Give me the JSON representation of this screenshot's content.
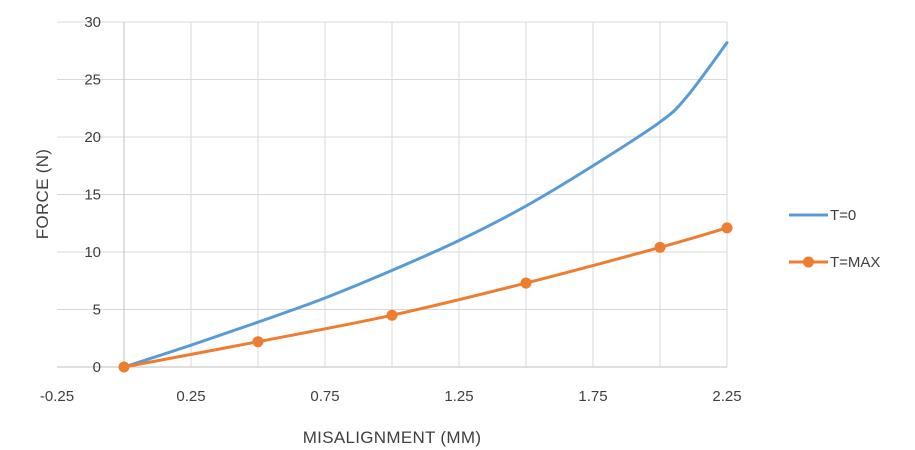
{
  "chart_data": {
    "type": "line",
    "title": "",
    "xlabel": "MISALIGNMENT  (MM)",
    "ylabel": "FORCE (N)",
    "xlim": [
      -0.25,
      2.25
    ],
    "ylim": [
      0,
      30
    ],
    "xticks": [
      -0.25,
      0.25,
      0.75,
      1.25,
      1.75,
      2.25
    ],
    "xtick_labels": [
      "-0.25",
      "0.25",
      "0.75",
      "1.25",
      "1.75",
      "2.25"
    ],
    "yticks": [
      0,
      5,
      10,
      15,
      20,
      25,
      30
    ],
    "ytick_labels": [
      "0",
      "5",
      "10",
      "15",
      "20",
      "25",
      "30"
    ],
    "grid": true,
    "legend_position": "right",
    "series": [
      {
        "name": "T=0",
        "color": "#5B9BD5",
        "markers": false,
        "x": [
          0,
          0.25,
          0.5,
          0.75,
          1.0,
          1.25,
          1.5,
          1.75,
          2.0,
          2.1,
          2.25
        ],
        "y": [
          0,
          1.9,
          3.9,
          6.0,
          8.4,
          11.0,
          14.0,
          17.5,
          21.3,
          23.5,
          28.2
        ]
      },
      {
        "name": "T=MAX",
        "color": "#ED7D31",
        "markers": true,
        "x": [
          0,
          0.5,
          1.0,
          1.5,
          2.0,
          2.25
        ],
        "y": [
          0,
          2.2,
          4.5,
          7.3,
          10.4,
          12.1
        ]
      }
    ]
  }
}
